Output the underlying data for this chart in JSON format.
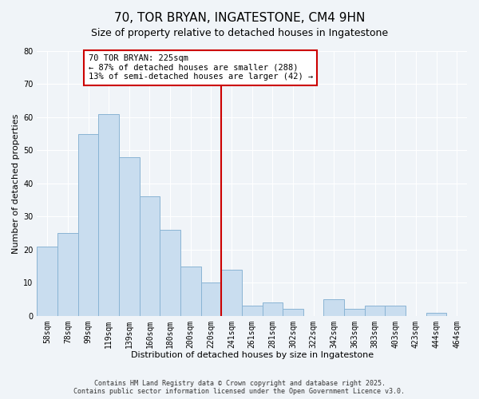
{
  "title": "70, TOR BRYAN, INGATESTONE, CM4 9HN",
  "subtitle": "Size of property relative to detached houses in Ingatestone",
  "xlabel": "Distribution of detached houses by size in Ingatestone",
  "ylabel": "Number of detached properties",
  "bar_labels": [
    "58sqm",
    "78sqm",
    "99sqm",
    "119sqm",
    "139sqm",
    "160sqm",
    "180sqm",
    "200sqm",
    "220sqm",
    "241sqm",
    "261sqm",
    "281sqm",
    "302sqm",
    "322sqm",
    "342sqm",
    "363sqm",
    "383sqm",
    "403sqm",
    "423sqm",
    "444sqm",
    "464sqm"
  ],
  "bar_values": [
    21,
    25,
    55,
    61,
    48,
    36,
    26,
    15,
    10,
    14,
    3,
    4,
    2,
    0,
    5,
    2,
    3,
    3,
    0,
    1,
    0
  ],
  "bar_color": "#c9ddef",
  "bar_edge_color": "#8ab4d4",
  "vline_x_idx": 8,
  "annotation_line1": "70 TOR BRYAN: 225sqm",
  "annotation_line2": "← 87% of detached houses are smaller (288)",
  "annotation_line3": "13% of semi-detached houses are larger (42) →",
  "vline_color": "#cc0000",
  "annotation_box_color": "#ffffff",
  "annotation_box_edge": "#cc0000",
  "background_color": "#f0f4f8",
  "ylim": [
    0,
    80
  ],
  "yticks": [
    0,
    10,
    20,
    30,
    40,
    50,
    60,
    70,
    80
  ],
  "footer_line1": "Contains HM Land Registry data © Crown copyright and database right 2025.",
  "footer_line2": "Contains public sector information licensed under the Open Government Licence v3.0.",
  "title_fontsize": 11,
  "subtitle_fontsize": 9,
  "axis_label_fontsize": 8,
  "tick_fontsize": 7,
  "annotation_fontsize": 7.5
}
